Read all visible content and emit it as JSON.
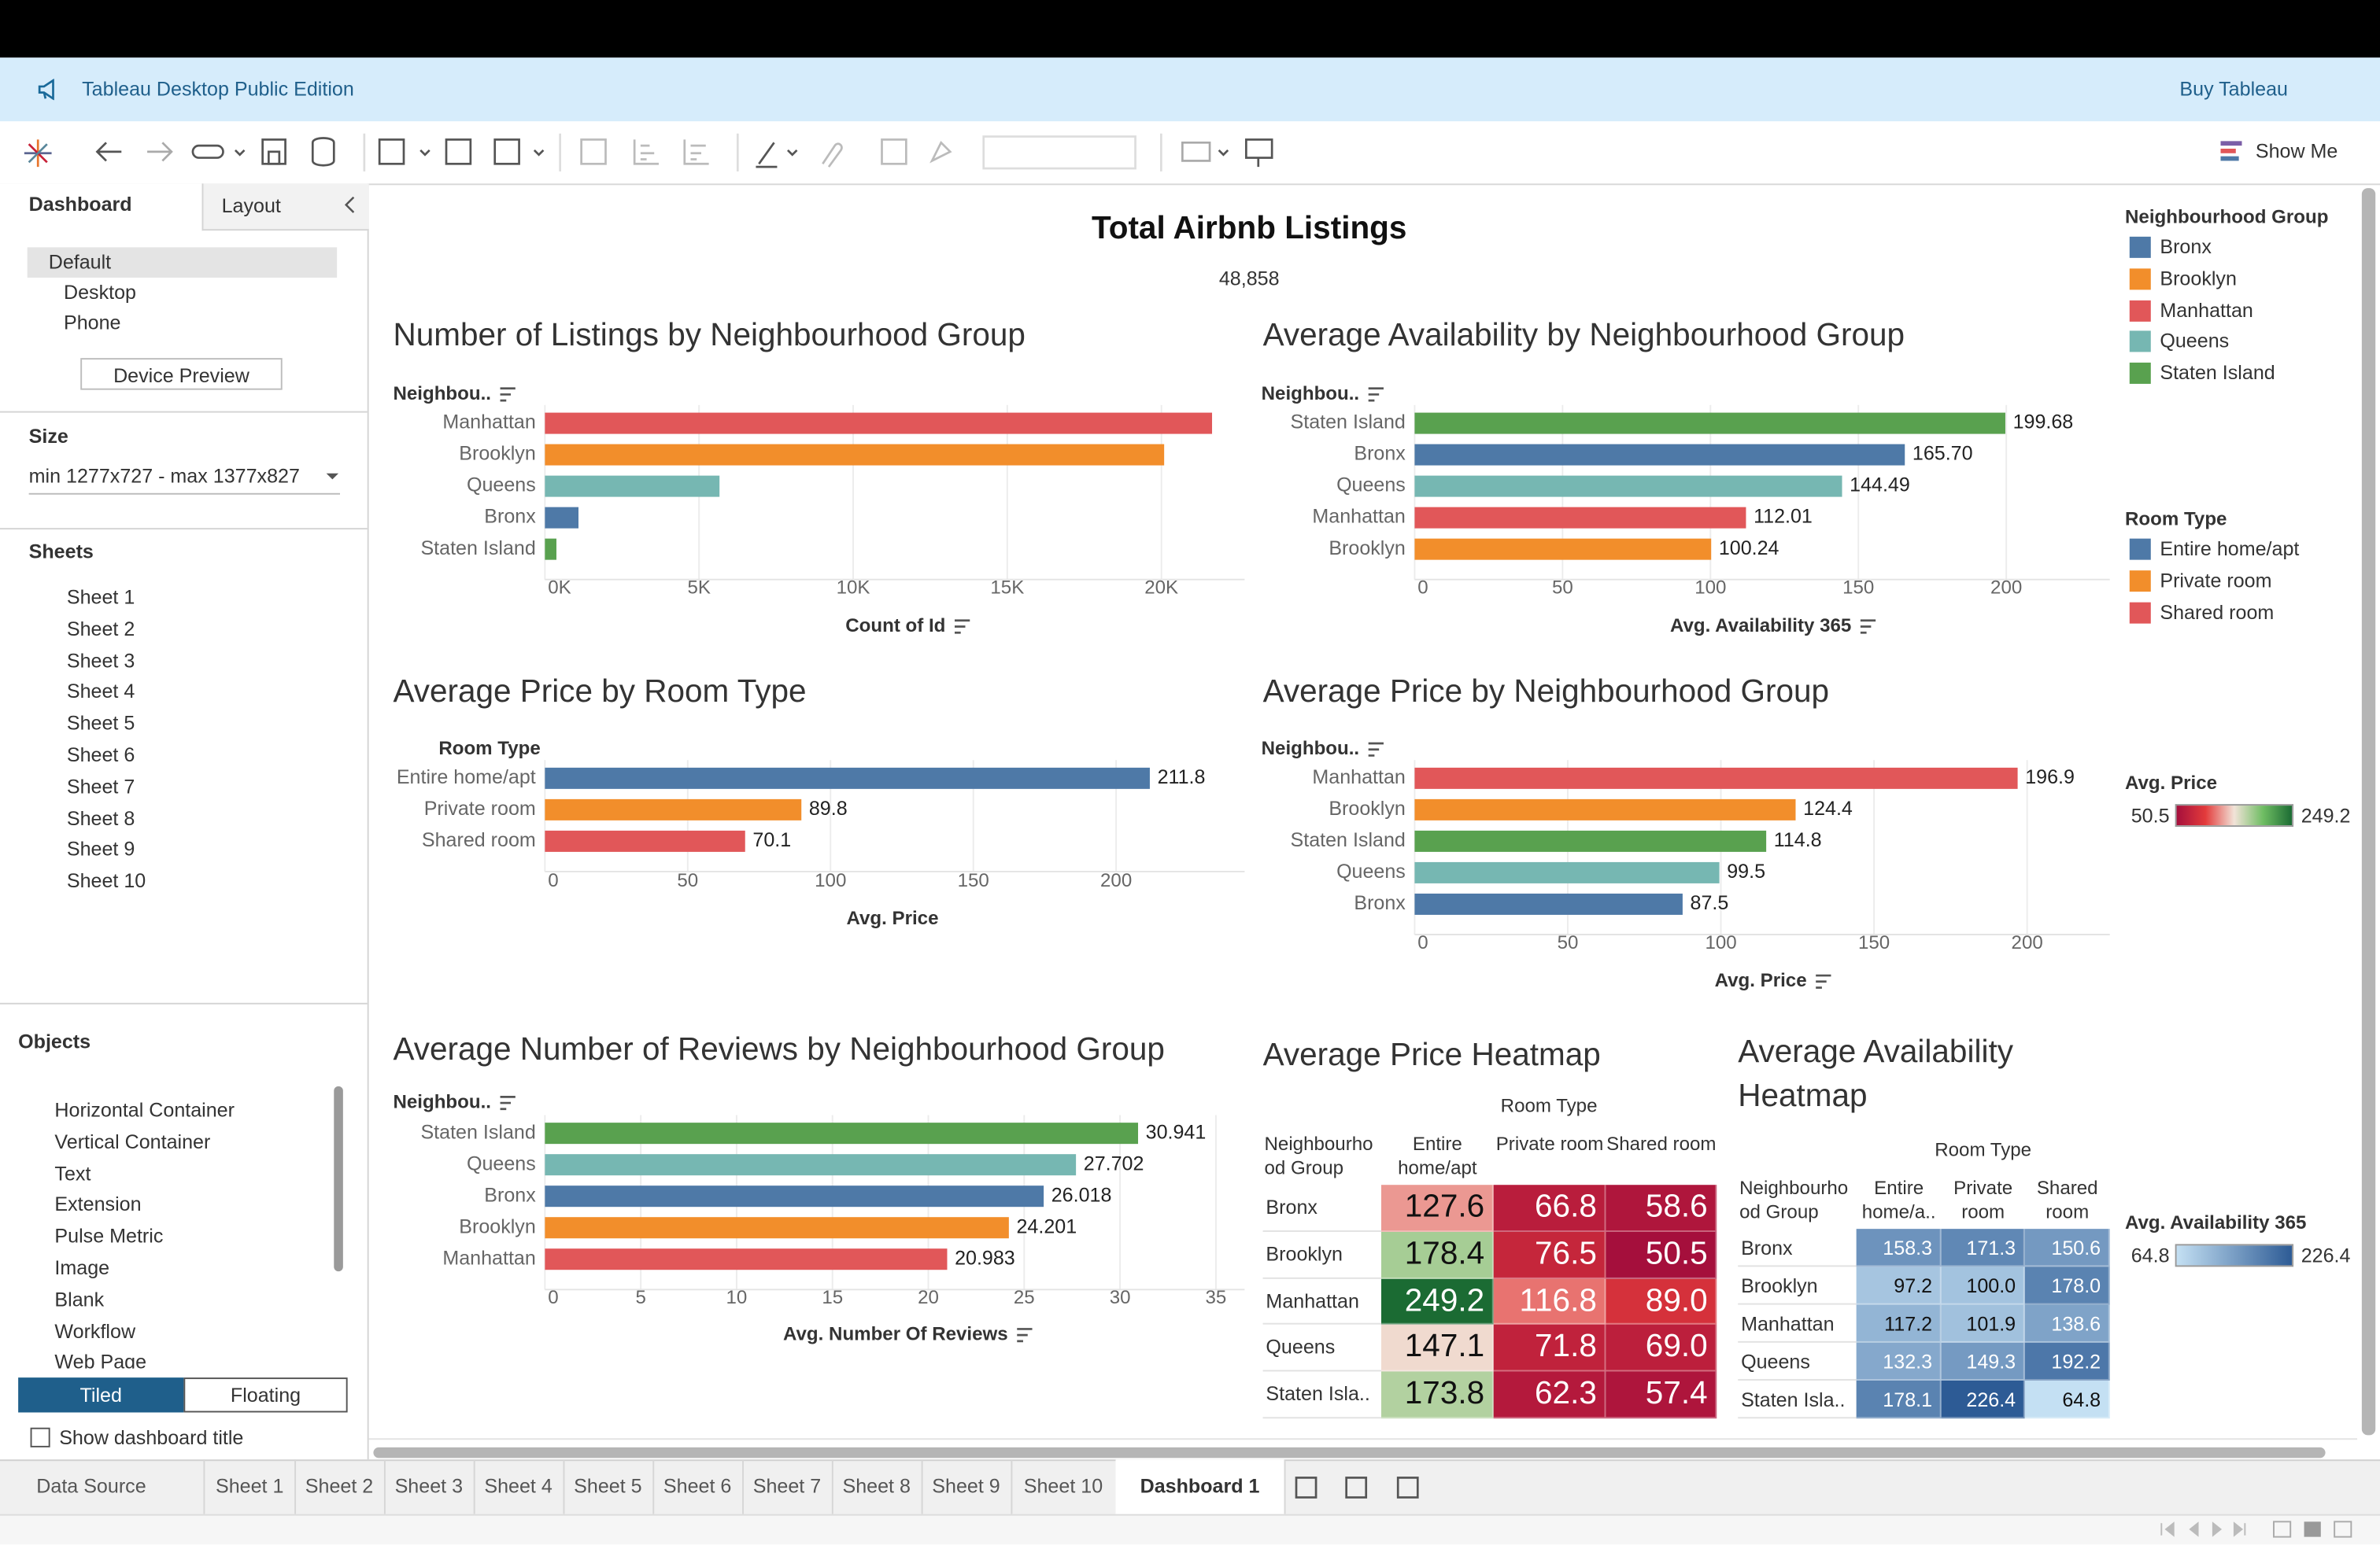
{
  "banner": {
    "title": "Tableau Desktop Public Edition",
    "buy": "Buy Tableau"
  },
  "toolbar": {
    "show_me": "Show Me"
  },
  "side_panel": {
    "tabs": [
      "Dashboard",
      "Layout"
    ],
    "devices": [
      "Default",
      "Desktop",
      "Phone"
    ],
    "device_preview": "Device Preview",
    "size_heading": "Size",
    "size_value": "min 1277x727 - max 1377x827",
    "sheets_heading": "Sheets",
    "sheets": [
      "Sheet 1",
      "Sheet 2",
      "Sheet 3",
      "Sheet 4",
      "Sheet 5",
      "Sheet 6",
      "Sheet 7",
      "Sheet 8",
      "Sheet 9",
      "Sheet 10"
    ],
    "objects_heading": "Objects",
    "objects": [
      "Horizontal Container",
      "Vertical Container",
      "Text",
      "Extension",
      "Pulse Metric",
      "Image",
      "Blank",
      "Workflow",
      "Web Page"
    ],
    "layout_modes": [
      "Tiled",
      "Floating"
    ],
    "show_title": "Show dashboard title"
  },
  "dashboard": {
    "title": "Total Airbnb Listings",
    "total": "48,858"
  },
  "chart_data": [
    {
      "type": "barh",
      "title": "Number of Listings by Neighbourhood Group",
      "y_label": "Neighbou..",
      "x_label": "Count of Id",
      "categories": [
        "Manhattan",
        "Brooklyn",
        "Queens",
        "Bronx",
        "Staten Island"
      ],
      "values": [
        21643,
        20089,
        5664,
        1089,
        373
      ],
      "colors": [
        "#e15759",
        "#f28e2b",
        "#76b7b2",
        "#4e79a7",
        "#59a14f"
      ],
      "xlim": [
        0,
        22700
      ],
      "xticks": [
        {
          "value": 0,
          "label": "0K"
        },
        {
          "value": 5000,
          "label": "5K"
        },
        {
          "value": 10000,
          "label": "10K"
        },
        {
          "value": 15000,
          "label": "15K"
        },
        {
          "value": 20000,
          "label": "20K"
        }
      ],
      "grid": true,
      "show_values": false
    },
    {
      "type": "barh",
      "title": "Average Availability by Neighbourhood Group",
      "y_label": "Neighbou..",
      "x_label": "Avg. Availability 365",
      "categories": [
        "Staten Island",
        "Bronx",
        "Queens",
        "Manhattan",
        "Brooklyn"
      ],
      "values": [
        199.68,
        165.7,
        144.49,
        112.01,
        100.24
      ],
      "value_labels": [
        "199.68",
        "165.70",
        "144.49",
        "112.01",
        "100.24"
      ],
      "colors": [
        "#59a14f",
        "#4e79a7",
        "#76b7b2",
        "#e15759",
        "#f28e2b"
      ],
      "xlim": [
        0,
        235
      ],
      "xticks": [
        0,
        50,
        100,
        150,
        200
      ],
      "grid": true,
      "show_values": true
    },
    {
      "type": "barh",
      "title": "Average Price by Room Type",
      "y_label": "Room Type",
      "x_label": "Avg. Price",
      "categories": [
        "Entire home/apt",
        "Private room",
        "Shared room"
      ],
      "values": [
        211.8,
        89.8,
        70.1
      ],
      "colors": [
        "#4e79a7",
        "#f28e2b",
        "#e15759"
      ],
      "xlim": [
        0,
        245
      ],
      "xticks": [
        0,
        50,
        100,
        150,
        200
      ],
      "grid": true,
      "show_values": true
    },
    {
      "type": "barh",
      "title": "Average Price by Neighbourhood Group",
      "y_label": "Neighbou..",
      "x_label": "Avg. Price",
      "categories": [
        "Manhattan",
        "Brooklyn",
        "Staten Island",
        "Queens",
        "Bronx"
      ],
      "values": [
        196.9,
        124.4,
        114.8,
        99.5,
        87.5
      ],
      "colors": [
        "#e15759",
        "#f28e2b",
        "#59a14f",
        "#76b7b2",
        "#4e79a7"
      ],
      "xlim": [
        0,
        227
      ],
      "xticks": [
        0,
        50,
        100,
        150,
        200
      ],
      "grid": true,
      "show_values": true
    },
    {
      "type": "barh",
      "title": "Average Number of Reviews by Neighbourhood Group",
      "y_label": "Neighbou..",
      "x_label": "Avg. Number Of Reviews",
      "categories": [
        "Staten Island",
        "Queens",
        "Bronx",
        "Brooklyn",
        "Manhattan"
      ],
      "values": [
        30.941,
        27.702,
        26.018,
        24.201,
        20.983
      ],
      "colors": [
        "#59a14f",
        "#76b7b2",
        "#4e79a7",
        "#f28e2b",
        "#e15759"
      ],
      "xlim": [
        0,
        36.5
      ],
      "xticks": [
        0,
        5,
        10,
        15,
        20,
        25,
        30,
        35
      ],
      "grid": true,
      "show_values": true
    },
    {
      "type": "heatmap",
      "title": "Average Price Heatmap",
      "column_header": "Room Type",
      "row_header": "Neighbourhood Group",
      "columns": [
        "Entire home/apt",
        "Private room",
        "Shared room"
      ],
      "rows": [
        "Bronx",
        "Brooklyn",
        "Manhattan",
        "Queens",
        "Staten Isla.."
      ],
      "values": [
        [
          127.6,
          66.8,
          58.6
        ],
        [
          178.4,
          76.5,
          50.5
        ],
        [
          249.2,
          116.8,
          89.0
        ],
        [
          147.1,
          71.8,
          69.0
        ],
        [
          173.8,
          62.3,
          57.4
        ]
      ],
      "value_labels": [
        [
          "127.6",
          "66.8",
          "58.6"
        ],
        [
          "178.4",
          "76.5",
          "50.5"
        ],
        [
          "249.2",
          "116.8",
          "89.0"
        ],
        [
          "147.1",
          "71.8",
          "69.0"
        ],
        [
          "173.8",
          "62.3",
          "57.4"
        ]
      ],
      "legend_title": "Avg. Price",
      "color_range": [
        50.5,
        249.2
      ],
      "color_stops": [
        "#a50f3c",
        "#e33b3b",
        "#f1e3d8",
        "#6fbd63",
        "#1b6b33"
      ]
    },
    {
      "type": "heatmap",
      "title": "Average Availability Heatmap",
      "column_header": "Room Type",
      "row_header": "Neighbourhood Group",
      "columns": [
        "Entire home/a..",
        "Private room",
        "Shared room"
      ],
      "rows": [
        "Bronx",
        "Brooklyn",
        "Manhattan",
        "Queens",
        "Staten Isla.."
      ],
      "values": [
        [
          158.3,
          171.3,
          150.6
        ],
        [
          97.2,
          100.0,
          178.0
        ],
        [
          117.2,
          101.9,
          138.6
        ],
        [
          132.3,
          149.3,
          192.2
        ],
        [
          178.1,
          226.4,
          64.8
        ]
      ],
      "value_labels": [
        [
          "158.3",
          "171.3",
          "150.6"
        ],
        [
          "97.2",
          "100.0",
          "178.0"
        ],
        [
          "117.2",
          "101.9",
          "138.6"
        ],
        [
          "132.3",
          "149.3",
          "192.2"
        ],
        [
          "178.1",
          "226.4",
          "64.8"
        ]
      ],
      "legend_title": "Avg. Availability 365",
      "color_range": [
        64.8,
        226.4
      ],
      "color_stops": [
        "#c4e0f3",
        "#2d5b95"
      ]
    }
  ],
  "legends": [
    {
      "title": "Neighbourhood Group",
      "items": [
        "Bronx",
        "Brooklyn",
        "Manhattan",
        "Queens",
        "Staten Island"
      ],
      "colors": [
        "#4e79a7",
        "#f28e2b",
        "#e15759",
        "#76b7b2",
        "#59a14f"
      ]
    },
    {
      "title": "Room Type",
      "items": [
        "Entire home/apt",
        "Private room",
        "Shared room"
      ],
      "colors": [
        "#4e79a7",
        "#f28e2b",
        "#e15759"
      ]
    }
  ],
  "bottom_tabs": [
    "Data Source",
    "Sheet 1",
    "Sheet 2",
    "Sheet 3",
    "Sheet 4",
    "Sheet 5",
    "Sheet 6",
    "Sheet 7",
    "Sheet 8",
    "Sheet 9",
    "Sheet 10",
    "Dashboard 1"
  ]
}
